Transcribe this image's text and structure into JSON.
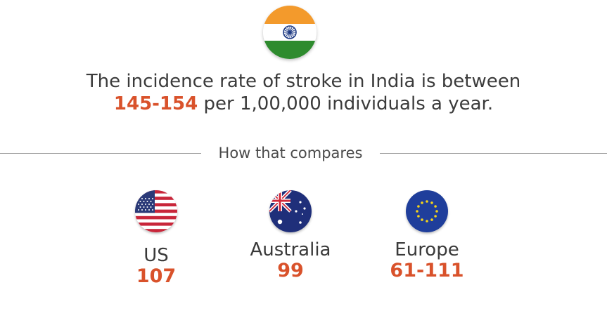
{
  "hero": {
    "flag_icon": "india-flag-icon",
    "headline_part1": "The incidence rate of stroke in India is between",
    "headline_highlight": "145-154",
    "headline_part2": "per 1,00,000 individuals a year."
  },
  "divider": {
    "label": "How that compares"
  },
  "comparisons": [
    {
      "name": "US",
      "value": "107",
      "flag_icon": "us-flag-icon"
    },
    {
      "name": "Australia",
      "value": "99",
      "flag_icon": "australia-flag-icon"
    },
    {
      "name": "Europe",
      "value": "61-111",
      "flag_icon": "europe-flag-icon"
    }
  ],
  "colors": {
    "accent": "#d9522b",
    "text": "#3a3a3a",
    "saffron": "#f39a2c",
    "green": "#2e8b2e",
    "navy": "#1f3b84"
  }
}
